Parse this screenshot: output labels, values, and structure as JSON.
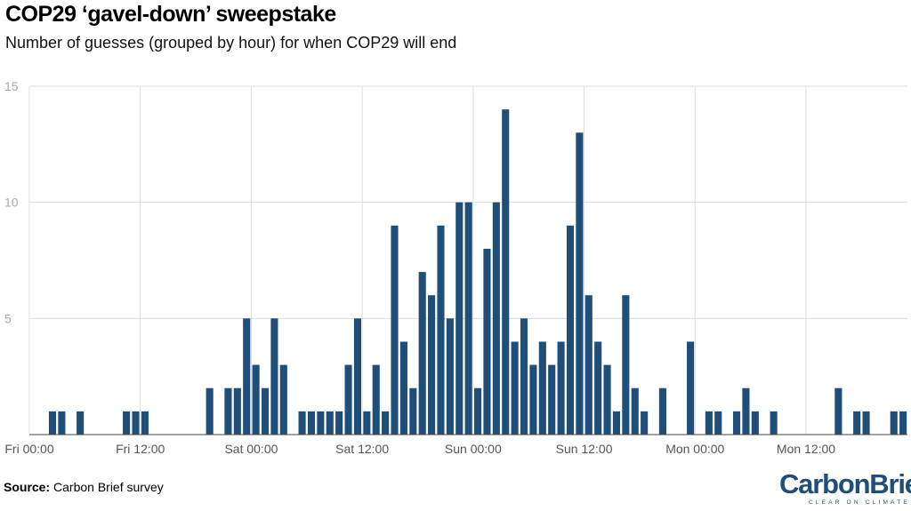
{
  "header": {
    "title": "COP29 ‘gavel-down’ sweepstake",
    "subtitle": "Number of guesses (grouped by hour) for when COP29 will end"
  },
  "footer": {
    "source_label": "Source:",
    "source_text": "Carbon Brief survey"
  },
  "logo": {
    "name": "CarbonBrief",
    "tagline": "CLEAR ON CLIMATE"
  },
  "colors": {
    "bar": "#1f4e79",
    "grid": "#dddddd",
    "axis": "#444444",
    "tick_label": "#555555",
    "y_label": "#aaaaaa"
  },
  "chart_data": {
    "type": "bar",
    "title": "COP29 ‘gavel-down’ sweepstake",
    "subtitle": "Number of guesses (grouped by hour) for when COP29 will end",
    "xlabel": "",
    "ylabel": "",
    "ylim": [
      0,
      15
    ],
    "yticks": [
      5,
      10,
      15
    ],
    "xlim_hours": [
      0,
      95
    ],
    "x_unit": "hours from Fri 00:00",
    "xticks": [
      {
        "hour": 0,
        "label": "Fri 00:00"
      },
      {
        "hour": 12,
        "label": "Fri 12:00"
      },
      {
        "hour": 24,
        "label": "Sat 00:00"
      },
      {
        "hour": 36,
        "label": "Sat 12:00"
      },
      {
        "hour": 48,
        "label": "Sun 00:00"
      },
      {
        "hour": 60,
        "label": "Sun 12:00"
      },
      {
        "hour": 72,
        "label": "Mon 00:00"
      },
      {
        "hour": 84,
        "label": "Mon 12:00"
      }
    ],
    "grid": true,
    "bars": [
      {
        "hour": 2,
        "value": 1
      },
      {
        "hour": 3,
        "value": 1
      },
      {
        "hour": 5,
        "value": 1
      },
      {
        "hour": 10,
        "value": 1
      },
      {
        "hour": 11,
        "value": 1
      },
      {
        "hour": 12,
        "value": 1
      },
      {
        "hour": 19,
        "value": 2
      },
      {
        "hour": 21,
        "value": 2
      },
      {
        "hour": 22,
        "value": 2
      },
      {
        "hour": 23,
        "value": 5
      },
      {
        "hour": 24,
        "value": 3
      },
      {
        "hour": 25,
        "value": 2
      },
      {
        "hour": 26,
        "value": 5
      },
      {
        "hour": 27,
        "value": 3
      },
      {
        "hour": 29,
        "value": 1
      },
      {
        "hour": 30,
        "value": 1
      },
      {
        "hour": 31,
        "value": 1
      },
      {
        "hour": 32,
        "value": 1
      },
      {
        "hour": 33,
        "value": 1
      },
      {
        "hour": 34,
        "value": 3
      },
      {
        "hour": 35,
        "value": 5
      },
      {
        "hour": 36,
        "value": 1
      },
      {
        "hour": 37,
        "value": 3
      },
      {
        "hour": 38,
        "value": 1
      },
      {
        "hour": 39,
        "value": 9
      },
      {
        "hour": 40,
        "value": 4
      },
      {
        "hour": 41,
        "value": 2
      },
      {
        "hour": 42,
        "value": 7
      },
      {
        "hour": 43,
        "value": 6
      },
      {
        "hour": 44,
        "value": 9
      },
      {
        "hour": 45,
        "value": 5
      },
      {
        "hour": 46,
        "value": 10
      },
      {
        "hour": 47,
        "value": 10
      },
      {
        "hour": 48,
        "value": 2
      },
      {
        "hour": 49,
        "value": 8
      },
      {
        "hour": 50,
        "value": 10
      },
      {
        "hour": 51,
        "value": 14
      },
      {
        "hour": 52,
        "value": 4
      },
      {
        "hour": 53,
        "value": 5
      },
      {
        "hour": 54,
        "value": 3
      },
      {
        "hour": 55,
        "value": 4
      },
      {
        "hour": 56,
        "value": 3
      },
      {
        "hour": 57,
        "value": 4
      },
      {
        "hour": 58,
        "value": 9
      },
      {
        "hour": 59,
        "value": 13
      },
      {
        "hour": 60,
        "value": 6
      },
      {
        "hour": 61,
        "value": 4
      },
      {
        "hour": 62,
        "value": 3
      },
      {
        "hour": 63,
        "value": 1
      },
      {
        "hour": 64,
        "value": 6
      },
      {
        "hour": 65,
        "value": 2
      },
      {
        "hour": 66,
        "value": 1
      },
      {
        "hour": 68,
        "value": 2
      },
      {
        "hour": 71,
        "value": 4
      },
      {
        "hour": 73,
        "value": 1
      },
      {
        "hour": 74,
        "value": 1
      },
      {
        "hour": 76,
        "value": 1
      },
      {
        "hour": 77,
        "value": 2
      },
      {
        "hour": 78,
        "value": 1
      },
      {
        "hour": 80,
        "value": 1
      },
      {
        "hour": 87,
        "value": 2
      },
      {
        "hour": 89,
        "value": 1
      },
      {
        "hour": 90,
        "value": 1
      },
      {
        "hour": 93,
        "value": 1
      },
      {
        "hour": 94,
        "value": 1
      }
    ]
  }
}
